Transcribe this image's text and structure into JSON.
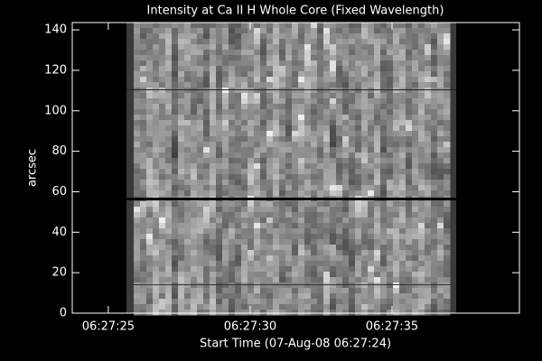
{
  "chart_data": {
    "type": "image",
    "title": "Intensity at Ca II H Whole Core (Fixed Wavelength)",
    "x_label": "Start Time (07-Aug-08 06:27:24)",
    "y_label": "arcsec",
    "xlim": [
      -0.27,
      15.49
    ],
    "xticks": [
      {
        "value": 1,
        "label": "06:27:25"
      },
      {
        "value": 6,
        "label": "06:27:30"
      },
      {
        "value": 11,
        "label": "06:27:35"
      }
    ],
    "ylim": [
      0,
      143.6
    ],
    "yticks": [
      0,
      20,
      40,
      60,
      80,
      100,
      120,
      140
    ]
  }
}
